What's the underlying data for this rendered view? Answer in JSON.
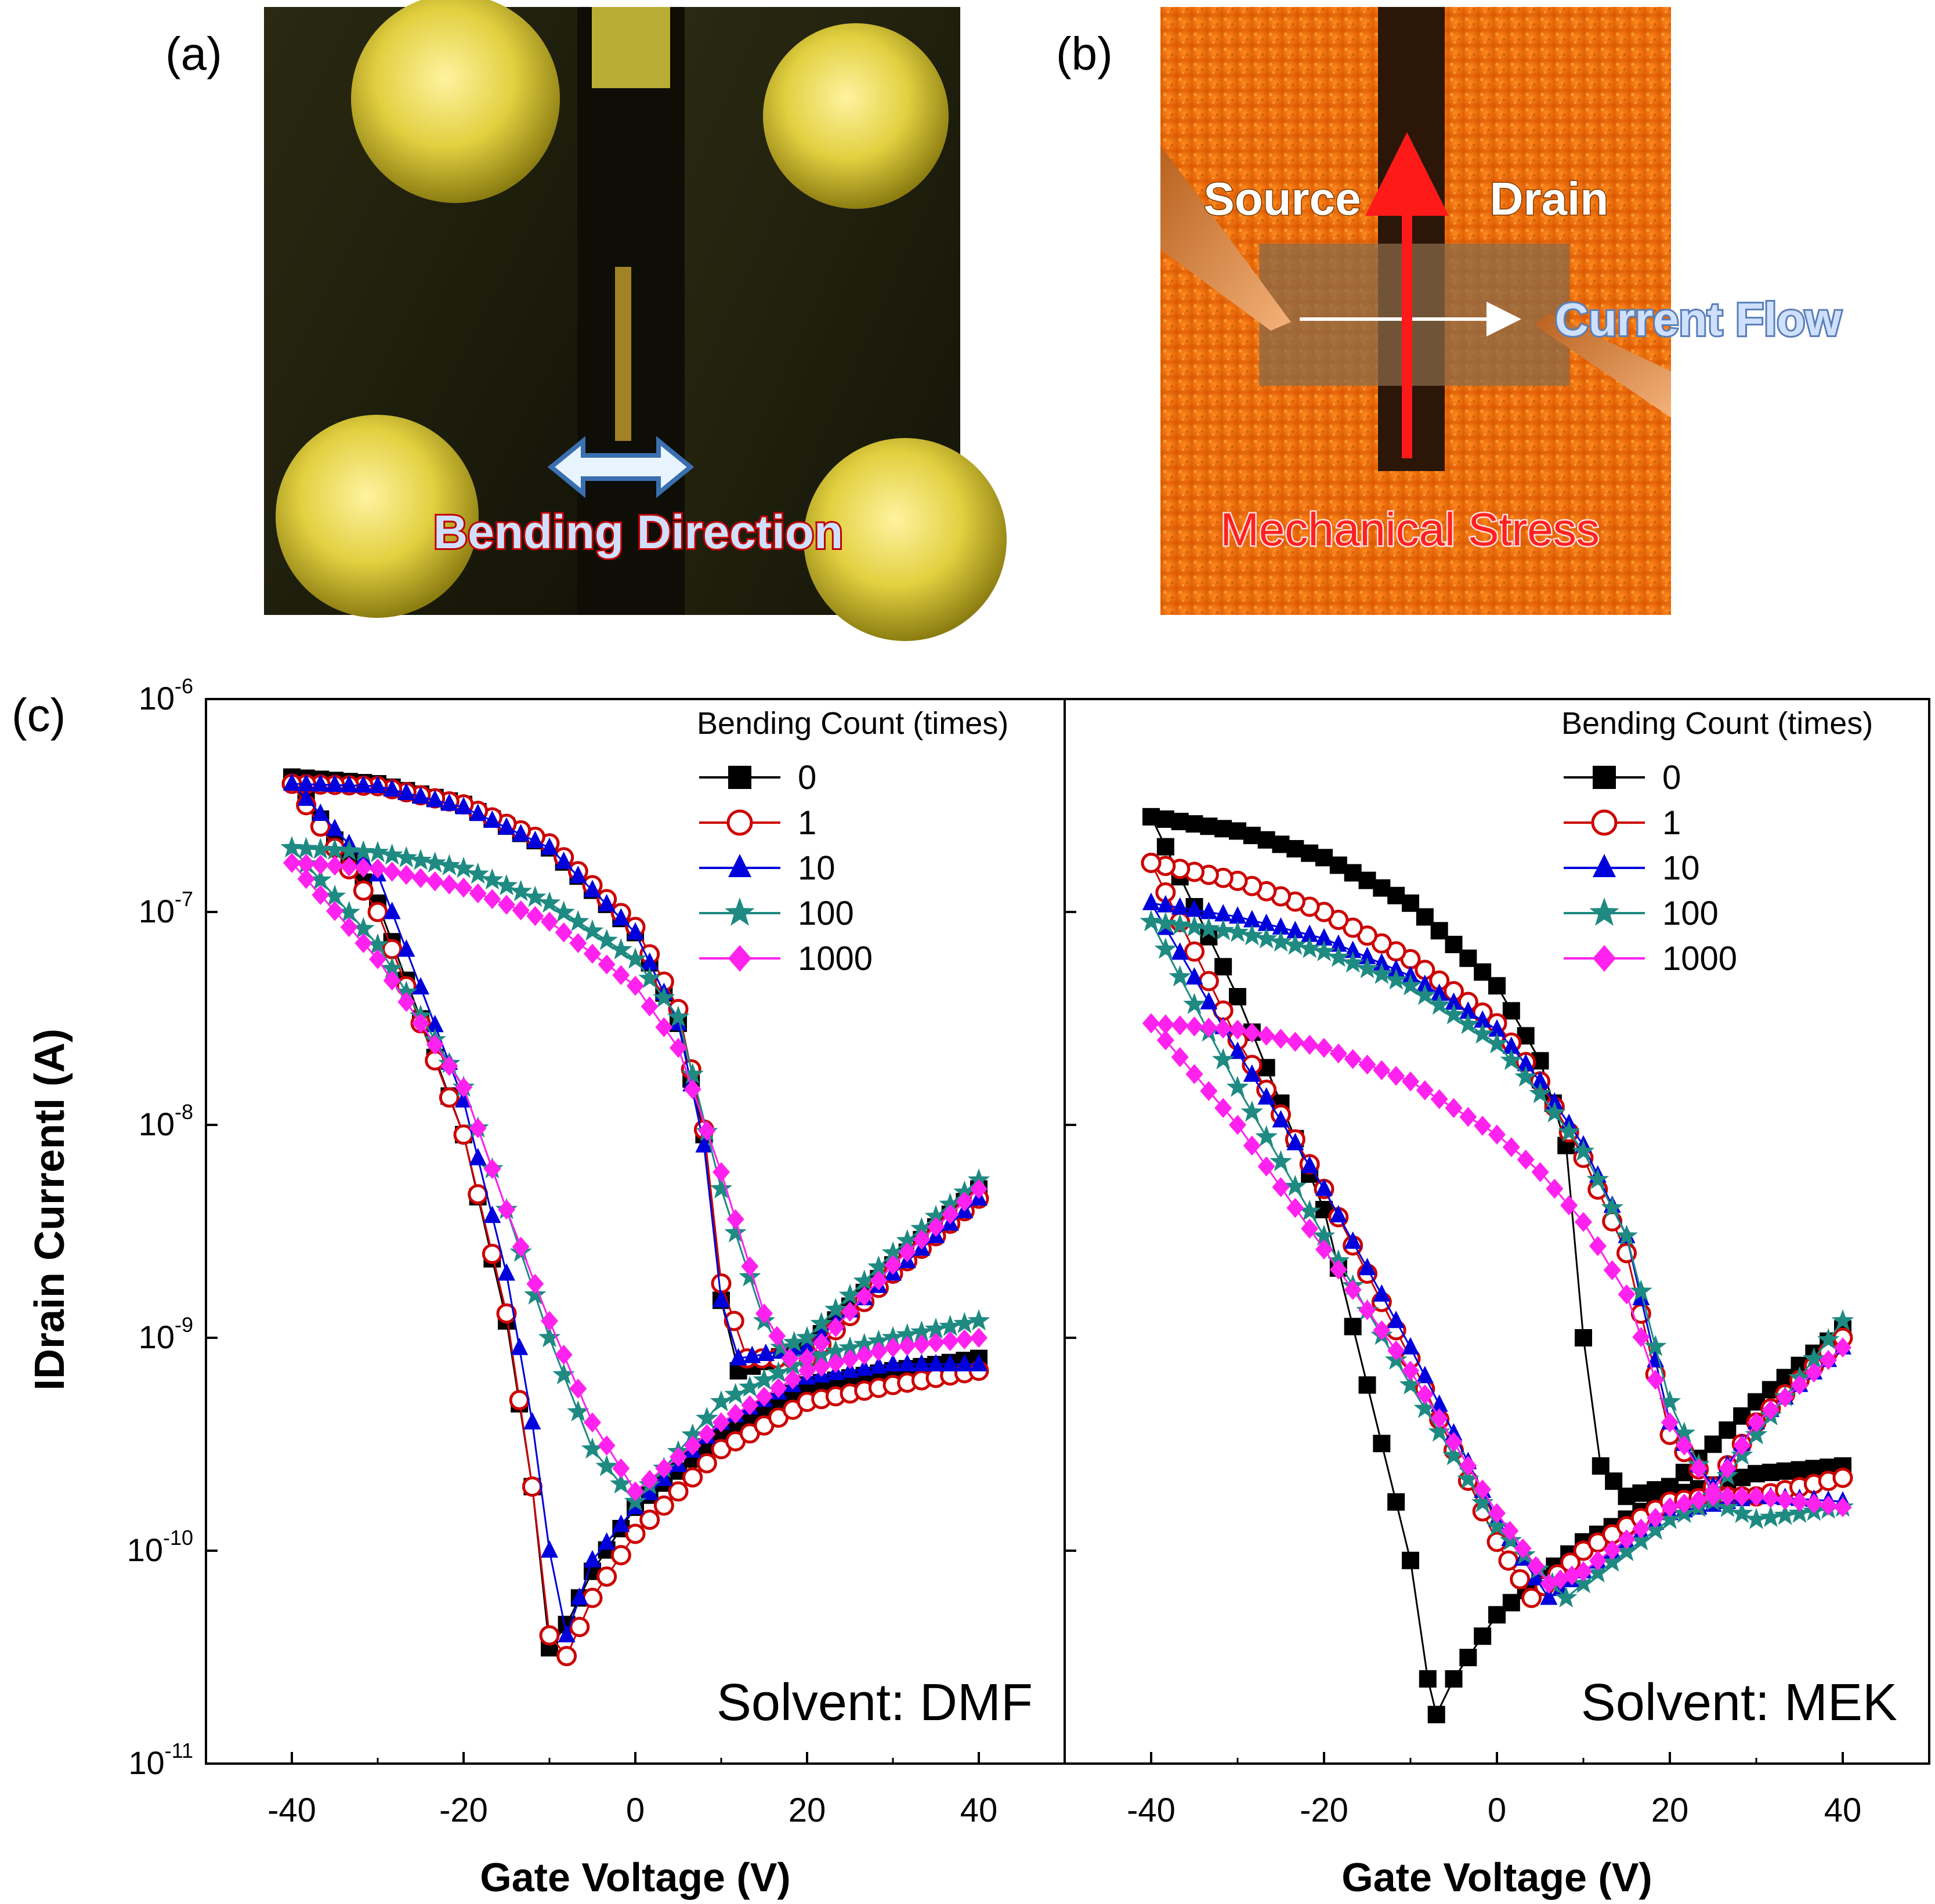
{
  "panels": {
    "a": {
      "label": "(a)",
      "annotation": "Bending Direction"
    },
    "b": {
      "label": "(b)",
      "source_label": "Source",
      "drain_label": "Drain",
      "current_label": "Current Flow",
      "stress_label": "Mechanical Stress"
    },
    "c": {
      "label": "(c)"
    }
  },
  "colors": {
    "0": "#000000",
    "1": "#cc0000",
    "10": "#0000dd",
    "100": "#1e8a82",
    "1000": "#ff22ee"
  },
  "chart_data": [
    {
      "type": "scatter",
      "solvent_label": "Solvent: DMF",
      "xlabel": "Gate Voltage (V)",
      "ylabel": "IDrain CurrentI (A)",
      "yscale": "log",
      "xlim": [
        -50,
        50
      ],
      "ylim": [
        1e-11,
        1e-06
      ],
      "xticks": [
        -40,
        -20,
        0,
        20,
        40
      ],
      "xtick_labels": [
        "-40",
        "-20",
        "0",
        "20",
        "40"
      ],
      "yticks": [
        1e-11,
        1e-10,
        1e-09,
        1e-08,
        1e-07,
        1e-06
      ],
      "ytick_labels": [
        {
          "base": "10",
          "exp": "-11"
        },
        {
          "base": "10",
          "exp": "-10"
        },
        {
          "base": "10",
          "exp": "-9"
        },
        {
          "base": "10",
          "exp": "-8"
        },
        {
          "base": "10",
          "exp": "-7"
        },
        {
          "base": "10",
          "exp": "-6"
        }
      ],
      "legend_title": "Bending Count (times)",
      "legend_position": "top-right",
      "series": [
        {
          "name": "0",
          "marker": "square",
          "forward": [
            [
              -40,
              4.3e-07
            ],
            [
              -30,
              1.1e-07
            ],
            [
              -20,
              9e-09
            ],
            [
              -15,
              1.2e-09
            ],
            [
              -12,
              2e-10
            ],
            [
              -10,
              3.5e-11
            ],
            [
              -8,
              4.5e-11
            ],
            [
              -5,
              8e-11
            ],
            [
              0,
              1.6e-10
            ],
            [
              10,
              3.5e-10
            ],
            [
              20,
              6e-10
            ],
            [
              30,
              7e-10
            ],
            [
              40,
              8e-10
            ]
          ],
          "backward": [
            [
              40,
              5e-09
            ],
            [
              30,
              2.2e-09
            ],
            [
              20,
              9e-10
            ],
            [
              12,
              7e-10
            ],
            [
              10,
              1.5e-09
            ],
            [
              8,
              9e-09
            ],
            [
              5,
              3e-08
            ],
            [
              0,
              8e-08
            ],
            [
              -10,
              2e-07
            ],
            [
              -20,
              3.2e-07
            ],
            [
              -30,
              4e-07
            ],
            [
              -40,
              4.3e-07
            ]
          ]
        },
        {
          "name": "1",
          "marker": "circle-open",
          "forward": [
            [
              -40,
              4e-07
            ],
            [
              -30,
              1e-07
            ],
            [
              -20,
              9e-09
            ],
            [
              -15,
              1.3e-09
            ],
            [
              -12,
              2e-10
            ],
            [
              -10,
              4e-11
            ],
            [
              -8,
              3.2e-11
            ],
            [
              -5,
              6e-11
            ],
            [
              0,
              1.2e-10
            ],
            [
              10,
              3e-10
            ],
            [
              20,
              5e-10
            ],
            [
              30,
              6e-10
            ],
            [
              40,
              7e-10
            ]
          ],
          "backward": [
            [
              40,
              4.5e-09
            ],
            [
              30,
              2e-09
            ],
            [
              20,
              8e-10
            ],
            [
              13,
              8e-10
            ],
            [
              10,
              1.8e-09
            ],
            [
              8,
              9.5e-09
            ],
            [
              5,
              3.5e-08
            ],
            [
              0,
              8.5e-08
            ],
            [
              -10,
              2.1e-07
            ],
            [
              -20,
              3.2e-07
            ],
            [
              -30,
              3.9e-07
            ],
            [
              -40,
              4e-07
            ]
          ]
        },
        {
          "name": "10",
          "marker": "triangle",
          "forward": [
            [
              -40,
              4e-07
            ],
            [
              -30,
              1.5e-07
            ],
            [
              -20,
              1.3e-08
            ],
            [
              -15,
              2e-09
            ],
            [
              -12,
              4e-10
            ],
            [
              -10,
              1e-10
            ],
            [
              -8,
              4e-11
            ],
            [
              -5,
              9e-11
            ],
            [
              0,
              1.6e-10
            ],
            [
              10,
              4e-10
            ],
            [
              20,
              6.5e-10
            ],
            [
              30,
              7.5e-10
            ],
            [
              40,
              7.5e-10
            ]
          ],
          "backward": [
            [
              40,
              4.5e-09
            ],
            [
              30,
              2e-09
            ],
            [
              20,
              9e-10
            ],
            [
              12,
              8e-10
            ],
            [
              10,
              1.5e-09
            ],
            [
              8,
              8e-09
            ],
            [
              5,
              3e-08
            ],
            [
              0,
              8e-08
            ],
            [
              -10,
              2e-07
            ],
            [
              -20,
              3.1e-07
            ],
            [
              -30,
              3.9e-07
            ],
            [
              -40,
              4e-07
            ]
          ]
        },
        {
          "name": "100",
          "marker": "star",
          "forward": [
            [
              -40,
              2e-07
            ],
            [
              -30,
              7e-08
            ],
            [
              -20,
              1.5e-08
            ],
            [
              -15,
              4e-09
            ],
            [
              -10,
              1e-09
            ],
            [
              -5,
              3e-10
            ],
            [
              0,
              1.7e-10
            ],
            [
              10,
              5e-10
            ],
            [
              20,
              8e-10
            ],
            [
              30,
              1e-09
            ],
            [
              40,
              1.2e-09
            ]
          ],
          "backward": [
            [
              40,
              5.5e-09
            ],
            [
              30,
              2.5e-09
            ],
            [
              20,
              1e-09
            ],
            [
              17,
              9e-10
            ],
            [
              15,
              1.2e-09
            ],
            [
              10,
              5e-09
            ],
            [
              5,
              3.2e-08
            ],
            [
              0,
              6e-08
            ],
            [
              -10,
              1.1e-07
            ],
            [
              -20,
              1.6e-07
            ],
            [
              -30,
              1.9e-07
            ],
            [
              -40,
              2e-07
            ]
          ]
        },
        {
          "name": "1000",
          "marker": "diamond",
          "forward": [
            [
              -40,
              1.7e-07
            ],
            [
              -30,
              6e-08
            ],
            [
              -20,
              1.5e-08
            ],
            [
              -15,
              4e-09
            ],
            [
              -10,
              1.2e-09
            ],
            [
              -5,
              4e-10
            ],
            [
              0,
              1.9e-10
            ],
            [
              10,
              4e-10
            ],
            [
              20,
              7e-10
            ],
            [
              30,
              9e-10
            ],
            [
              40,
              1e-09
            ]
          ],
          "backward": [
            [
              40,
              5e-09
            ],
            [
              30,
              2.2e-09
            ],
            [
              20,
              8e-10
            ],
            [
              18,
              8e-10
            ],
            [
              15,
              1.3e-09
            ],
            [
              10,
              6e-09
            ],
            [
              5,
              2.3e-08
            ],
            [
              0,
              4.5e-08
            ],
            [
              -10,
              9e-08
            ],
            [
              -20,
              1.3e-07
            ],
            [
              -30,
              1.6e-07
            ],
            [
              -40,
              1.7e-07
            ]
          ]
        }
      ]
    },
    {
      "type": "scatter",
      "solvent_label": "Solvent: MEK",
      "xlabel": "Gate Voltage (V)",
      "ylabel": "",
      "yscale": "log",
      "xlim": [
        -50,
        50
      ],
      "ylim": [
        1e-11,
        1e-06
      ],
      "xticks": [
        -40,
        -20,
        0,
        20,
        40
      ],
      "xtick_labels": [
        "-40",
        "-20",
        "0",
        "20",
        "40"
      ],
      "legend_title": "Bending Count (times)",
      "legend_position": "top-right",
      "series": [
        {
          "name": "0",
          "marker": "square",
          "forward": [
            [
              -40,
              2.8e-07
            ],
            [
              -30,
              4e-08
            ],
            [
              -20,
              4e-09
            ],
            [
              -15,
              6e-10
            ],
            [
              -10,
              9e-11
            ],
            [
              -8,
              2.5e-11
            ],
            [
              -7,
              1.7e-11
            ],
            [
              -5,
              2.5e-11
            ],
            [
              0,
              5e-11
            ],
            [
              10,
              1.1e-10
            ],
            [
              20,
              1.8e-10
            ],
            [
              30,
              2.3e-10
            ],
            [
              40,
              2.5e-10
            ]
          ],
          "backward": [
            [
              40,
              1.1e-09
            ],
            [
              30,
              5e-10
            ],
            [
              20,
              2e-10
            ],
            [
              15,
              1.8e-10
            ],
            [
              12,
              2.5e-10
            ],
            [
              10,
              1e-09
            ],
            [
              8,
              8e-09
            ],
            [
              5,
              2e-08
            ],
            [
              0,
              4.5e-08
            ],
            [
              -10,
              1.1e-07
            ],
            [
              -20,
              1.8e-07
            ],
            [
              -30,
              2.4e-07
            ],
            [
              -40,
              2.8e-07
            ]
          ]
        },
        {
          "name": "1",
          "marker": "circle-open",
          "forward": [
            [
              -40,
              1.7e-07
            ],
            [
              -30,
              2.5e-08
            ],
            [
              -20,
              5e-09
            ],
            [
              -10,
              8e-10
            ],
            [
              0,
              1.1e-10
            ],
            [
              4,
              6e-11
            ],
            [
              10,
              1e-10
            ],
            [
              20,
              1.7e-10
            ],
            [
              25,
              1.8e-10
            ],
            [
              30,
              1.8e-10
            ],
            [
              40,
              2.2e-10
            ]
          ],
          "backward": [
            [
              40,
              1e-09
            ],
            [
              30,
              4e-10
            ],
            [
              25,
              2e-10
            ],
            [
              20,
              3.5e-10
            ],
            [
              15,
              2.5e-09
            ],
            [
              10,
              7e-09
            ],
            [
              5,
              1.6e-08
            ],
            [
              0,
              3e-08
            ],
            [
              -10,
              6e-08
            ],
            [
              -20,
              1e-07
            ],
            [
              -30,
              1.4e-07
            ],
            [
              -40,
              1.7e-07
            ]
          ]
        },
        {
          "name": "10",
          "marker": "triangle",
          "forward": [
            [
              -40,
              1.1e-07
            ],
            [
              -30,
              2.2e-08
            ],
            [
              -20,
              5e-09
            ],
            [
              -10,
              9e-10
            ],
            [
              0,
              1.4e-10
            ],
            [
              6,
              6e-11
            ],
            [
              10,
              8e-11
            ],
            [
              20,
              1.5e-10
            ],
            [
              30,
              1.8e-10
            ],
            [
              40,
              1.7e-10
            ]
          ],
          "backward": [
            [
              40,
              9e-10
            ],
            [
              30,
              4e-10
            ],
            [
              25,
              2e-10
            ],
            [
              20,
              4e-10
            ],
            [
              15,
              3e-09
            ],
            [
              10,
              8e-09
            ],
            [
              5,
              1.6e-08
            ],
            [
              0,
              2.8e-08
            ],
            [
              -10,
              5e-08
            ],
            [
              -20,
              7.5e-08
            ],
            [
              -30,
              9.5e-08
            ],
            [
              -40,
              1.1e-07
            ]
          ]
        },
        {
          "name": "100",
          "marker": "star",
          "forward": [
            [
              -40,
              9e-08
            ],
            [
              -30,
              1.5e-08
            ],
            [
              -20,
              3e-09
            ],
            [
              -10,
              6e-10
            ],
            [
              0,
              1.3e-10
            ],
            [
              8,
              6e-11
            ],
            [
              10,
              7e-11
            ],
            [
              20,
              1.4e-10
            ],
            [
              25,
              1.7e-10
            ],
            [
              30,
              1.4e-10
            ],
            [
              40,
              1.6e-10
            ]
          ],
          "backward": [
            [
              40,
              1.2e-09
            ],
            [
              30,
              3.5e-10
            ],
            [
              25,
              1.8e-10
            ],
            [
              20,
              5e-10
            ],
            [
              15,
              3e-09
            ],
            [
              10,
              7.5e-09
            ],
            [
              5,
              1.4e-08
            ],
            [
              0,
              2.4e-08
            ],
            [
              -10,
              4.5e-08
            ],
            [
              -20,
              6.5e-08
            ],
            [
              -30,
              8e-08
            ],
            [
              -40,
              9e-08
            ]
          ]
        },
        {
          "name": "1000",
          "marker": "diamond",
          "forward": [
            [
              -40,
              3e-08
            ],
            [
              -30,
              1e-08
            ],
            [
              -20,
              2.6e-09
            ],
            [
              -10,
              7e-10
            ],
            [
              0,
              1.5e-10
            ],
            [
              6,
              7e-11
            ],
            [
              10,
              8e-11
            ],
            [
              20,
              1.6e-10
            ],
            [
              25,
              1.8e-10
            ],
            [
              30,
              1.8e-10
            ],
            [
              40,
              1.6e-10
            ]
          ],
          "backward": [
            [
              40,
              9e-10
            ],
            [
              30,
              4e-10
            ],
            [
              25,
              1.9e-10
            ],
            [
              20,
              4e-10
            ],
            [
              15,
              1.6e-09
            ],
            [
              10,
              3.5e-09
            ],
            [
              5,
              6e-09
            ],
            [
              0,
              9e-09
            ],
            [
              -10,
              1.6e-08
            ],
            [
              -20,
              2.3e-08
            ],
            [
              -30,
              2.8e-08
            ],
            [
              -40,
              3e-08
            ]
          ]
        }
      ]
    }
  ]
}
